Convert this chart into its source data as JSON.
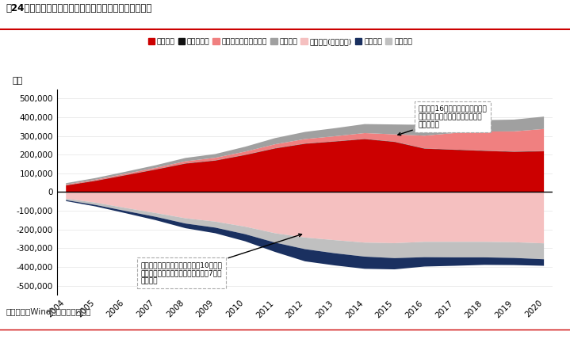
{
  "title": "图24：我国央行资产负债表中资产端与负债端的主要变化",
  "ylabel": "亿元",
  "source": "资料来源：Wind，中信证券研究部",
  "years": [
    2004,
    2005,
    2006,
    2007,
    2008,
    2009,
    2010,
    2011,
    2012,
    2013,
    2014,
    2015,
    2016,
    2017,
    2018,
    2019,
    2020
  ],
  "legend_labels": [
    "国外资产",
    "对政府债权",
    "对其他存款性公司债权",
    "其他资产",
    "储备货币(基础货币)",
    "债券发行",
    "其他负债"
  ],
  "legend_colors": [
    "#cc0000",
    "#111111",
    "#f08080",
    "#a0a0a0",
    "#f5c0c0",
    "#1a3060",
    "#c0c0c0"
  ],
  "asset_guowai": [
    35000,
    60000,
    90000,
    120000,
    152000,
    168000,
    198000,
    233000,
    258000,
    270000,
    283000,
    268000,
    232000,
    226000,
    220000,
    215000,
    218000
  ],
  "asset_zhengfu": [
    1500,
    1500,
    1500,
    1500,
    1500,
    1500,
    1500,
    1500,
    1500,
    1500,
    1500,
    1500,
    1500,
    1500,
    1500,
    1500,
    1500
  ],
  "asset_cunxing": [
    4000,
    5000,
    6500,
    8000,
    11000,
    14000,
    17000,
    21000,
    24000,
    27000,
    31000,
    39000,
    68000,
    88000,
    102000,
    108000,
    118000
  ],
  "asset_qita": [
    7000,
    9000,
    11000,
    14000,
    18000,
    20000,
    26000,
    33000,
    38000,
    43000,
    48000,
    53000,
    58000,
    60000,
    61000,
    63000,
    66000
  ],
  "liab_chubei": [
    -35000,
    -57000,
    -85000,
    -112000,
    -140000,
    -158000,
    -185000,
    -220000,
    -243000,
    -257000,
    -270000,
    -273000,
    -266000,
    -266000,
    -266000,
    -268000,
    -274000
  ],
  "liab_zhaiquan": [
    -5000,
    -8000,
    -12000,
    -18000,
    -25000,
    -30000,
    -38000,
    -50000,
    -65000,
    -65000,
    -65000,
    -60000,
    -50000,
    -45000,
    -40000,
    -38000,
    -35000
  ],
  "liab_qita": [
    -8000,
    -12000,
    -16000,
    -20000,
    -28000,
    -32000,
    -40000,
    -50000,
    -62000,
    -70000,
    -75000,
    -80000,
    -82000,
    -83000,
    -83000,
    -84000,
    -85000
  ],
  "ylim": [
    -550000,
    550000
  ],
  "yticks": [
    -500000,
    -400000,
    -300000,
    -200000,
    -100000,
    0,
    100000,
    200000,
    300000,
    400000,
    500000
  ],
  "annotation_asset_text": "资产端：16年以来对其他存款性公\n司债券上升较为明显，抵补了国外\n资产的下降",
  "annotation_liab_text": "负债端：债券发行的净贡献已较10年前明\n显减少，储备货币和其他资产在过去7年间\n趋于稳定"
}
